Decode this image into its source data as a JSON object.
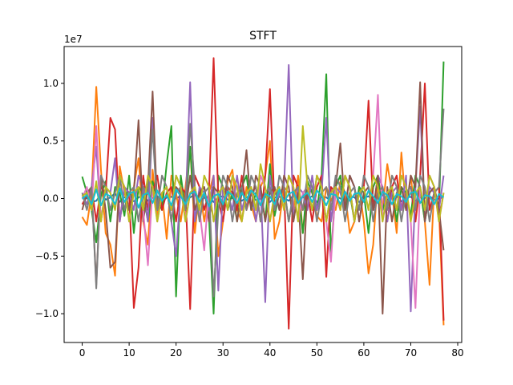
{
  "chart_data": {
    "type": "line",
    "title": "STFT",
    "xlabel": "",
    "ylabel": "",
    "y_multiplier_label": "1e7",
    "xlim": [
      -3.85,
      80.85
    ],
    "ylim": [
      -12500000.0,
      13200000.0
    ],
    "grid": false,
    "legend": "none",
    "x_ticks": [
      0,
      10,
      20,
      30,
      40,
      50,
      60,
      70,
      80
    ],
    "x_tick_labels": [
      "0",
      "10",
      "20",
      "30",
      "40",
      "50",
      "60",
      "70",
      "80"
    ],
    "y_ticks": [
      -10000000.0,
      -5000000.0,
      0.0,
      5000000.0,
      10000000.0
    ],
    "y_tick_labels": [
      "−1.0",
      "−0.5",
      "0.0",
      "0.5",
      "1.0"
    ],
    "x": [
      0,
      1,
      2,
      3,
      4,
      5,
      6,
      7,
      8,
      9,
      10,
      11,
      12,
      13,
      14,
      15,
      16,
      17,
      18,
      19,
      20,
      21,
      22,
      23,
      24,
      25,
      26,
      27,
      28,
      29,
      30,
      31,
      32,
      33,
      34,
      35,
      36,
      37,
      38,
      39,
      40,
      41,
      42,
      43,
      44,
      45,
      46,
      47,
      48,
      49,
      50,
      51,
      52,
      53,
      54,
      55,
      56,
      57,
      58,
      59,
      60,
      61,
      62,
      63,
      64,
      65,
      66,
      67,
      68,
      69,
      70,
      71,
      72,
      73,
      74,
      75,
      76,
      77
    ],
    "colors": [
      "#1f77b4",
      "#ff7f0e",
      "#2ca02c",
      "#d62728",
      "#9467bd",
      "#8c564b",
      "#e377c2",
      "#7f7f7f",
      "#bcbd22",
      "#17becf"
    ],
    "series": [
      {
        "values": [
          0.0,
          0.03,
          -0.3,
          -0.2,
          0.4,
          -0.1,
          0.1,
          0.45,
          -0.3,
          0.1,
          0.2,
          -0.25,
          0.1,
          0.3,
          -0.2,
          0.05,
          0.2,
          -0.3,
          0.1,
          0.15,
          0.0,
          0.25,
          -0.3,
          0.1,
          0.35,
          -0.2,
          0.05,
          0.2,
          -0.3,
          0.1,
          0.2,
          -0.1,
          0.05,
          0.25,
          -0.2,
          0.1,
          0.3,
          -0.15,
          0.0,
          0.2,
          -0.3,
          0.1,
          0.15,
          0.05,
          -0.2,
          0.3,
          -0.1,
          0.1,
          0.0,
          0.2,
          -0.3,
          0.15,
          0.1,
          -0.2,
          0.25,
          0.0,
          -0.1,
          0.2,
          0.1,
          -0.3,
          0.05,
          0.2,
          -0.2,
          0.1,
          0.3,
          -0.1,
          0.0,
          0.2,
          -0.25,
          0.1,
          0.15,
          -0.2,
          0.1,
          0.05,
          0.2,
          -0.1,
          0.0,
          0.1
        ]
      },
      {
        "values": [
          -1.6,
          -2.3,
          0.5,
          9.7,
          2.5,
          -3.0,
          -4.0,
          -6.7,
          2.8,
          0.5,
          -1.0,
          1.0,
          3.5,
          -2.0,
          -4.0,
          2.5,
          -1.5,
          0.5,
          -3.5,
          2.0,
          0.5,
          -2.0,
          1.0,
          4.5,
          -3.0,
          1.0,
          -2.0,
          0.5,
          2.0,
          -5.0,
          -2.0,
          1.5,
          2.5,
          -1.0,
          -2.0,
          1.0,
          -0.5,
          -2.0,
          1.0,
          2.0,
          5.0,
          -3.5,
          -2.0,
          1.0,
          0.5,
          -1.0,
          2.0,
          -3.0,
          1.0,
          0.5,
          -1.5,
          -2.0,
          1.0,
          0.0,
          -1.0,
          1.5,
          0.5,
          -3.0,
          -2.0,
          1.0,
          -2.0,
          -6.5,
          -4.0,
          2.0,
          -1.0,
          3.0,
          0.5,
          -3.0,
          4.0,
          -1.0,
          2.0,
          -2.0,
          1.0,
          -2.0,
          -7.5,
          1.0,
          -1.0,
          -11.0
        ]
      },
      {
        "values": [
          1.9,
          0.5,
          -1.0,
          -3.8,
          0.3,
          1.5,
          -2.0,
          1.0,
          0.5,
          -1.5,
          2.0,
          -3.0,
          1.0,
          0.5,
          -2.0,
          1.5,
          0.0,
          -1.0,
          3.0,
          6.3,
          -8.5,
          2.0,
          -1.0,
          4.5,
          -2.0,
          0.5,
          1.0,
          -1.5,
          -10.0,
          2.0,
          1.0,
          -1.0,
          0.5,
          -2.0,
          1.0,
          2.0,
          -1.0,
          0.5,
          1.0,
          -2.0,
          3.0,
          -1.5,
          0.5,
          1.0,
          -2.0,
          0.5,
          1.0,
          -3.0,
          1.5,
          0.5,
          -1.0,
          2.0,
          10.8,
          -5.0,
          1.0,
          2.0,
          -1.0,
          0.5,
          -2.0,
          1.0,
          0.5,
          -3.0,
          1.0,
          2.0,
          -1.0,
          0.5,
          1.0,
          -2.0,
          1.0,
          0.5,
          -1.5,
          2.0,
          1.0,
          -2.0,
          0.5,
          1.0,
          -1.0,
          11.9
        ]
      },
      {
        "values": [
          -0.5,
          0.2,
          1.0,
          -2.0,
          1.0,
          0.5,
          7.0,
          6.0,
          -2.0,
          1.0,
          0.5,
          -9.5,
          -6.0,
          2.0,
          -1.0,
          0.5,
          2.0,
          -1.0,
          0.5,
          1.0,
          -2.0,
          1.0,
          0.5,
          -9.6,
          2.0,
          1.0,
          -1.0,
          0.5,
          12.2,
          0.0,
          -2.0,
          1.0,
          0.5,
          -1.0,
          2.0,
          -1.0,
          0.5,
          1.0,
          -2.0,
          2.0,
          9.5,
          -1.0,
          0.5,
          1.0,
          -11.3,
          2.0,
          1.0,
          -1.0,
          0.5,
          -2.0,
          1.0,
          2.0,
          -6.8,
          1.0,
          0.5,
          -1.0,
          2.0,
          1.0,
          -2.0,
          0.5,
          1.0,
          8.5,
          -1.0,
          0.5,
          1.0,
          -2.0,
          1.0,
          2.0,
          -1.0,
          0.5,
          1.0,
          -2.0,
          2.0,
          10.0,
          -1.0,
          0.5,
          1.0,
          -10.6
        ]
      },
      {
        "values": [
          0.3,
          -0.5,
          1.0,
          4.5,
          -2.0,
          1.0,
          0.5,
          3.5,
          -2.0,
          1.0,
          0.5,
          -1.0,
          2.0,
          1.0,
          -2.0,
          7.0,
          -1.0,
          0.5,
          1.0,
          -2.0,
          -5.0,
          1.0,
          -1.0,
          10.1,
          -2.0,
          1.0,
          0.5,
          -1.0,
          2.0,
          -8.0,
          1.0,
          0.5,
          -1.0,
          2.0,
          -1.0,
          0.5,
          1.0,
          -2.0,
          1.0,
          -9.0,
          2.0,
          -1.0,
          0.5,
          1.0,
          11.6,
          -2.0,
          1.0,
          0.5,
          -1.0,
          2.0,
          -1.0,
          0.5,
          7.0,
          -2.0,
          1.0,
          0.5,
          -1.0,
          2.0,
          1.0,
          -2.0,
          0.5,
          1.0,
          -1.0,
          2.0,
          1.0,
          -2.0,
          0.5,
          1.0,
          -1.0,
          2.0,
          -9.8,
          1.0,
          8.0,
          -2.0,
          1.0,
          0.5,
          -1.0,
          2.0
        ]
      },
      {
        "values": [
          -1.0,
          0.5,
          1.0,
          -7.5,
          2.0,
          -1.0,
          -6.0,
          -5.5,
          2.0,
          1.0,
          -1.0,
          0.5,
          6.8,
          -2.0,
          1.0,
          9.3,
          -1.0,
          0.5,
          1.0,
          -2.0,
          1.0,
          0.5,
          -1.0,
          2.0,
          -1.0,
          0.5,
          1.0,
          -2.0,
          1.0,
          0.5,
          -1.0,
          2.0,
          1.0,
          -2.0,
          0.5,
          4.2,
          -1.0,
          2.0,
          1.0,
          -2.0,
          0.5,
          1.0,
          -1.0,
          2.0,
          1.0,
          -2.0,
          0.5,
          -7.0,
          1.0,
          -1.0,
          2.0,
          1.0,
          -2.0,
          0.5,
          1.0,
          4.8,
          -1.0,
          2.0,
          1.0,
          -2.0,
          0.5,
          1.0,
          -1.0,
          2.0,
          -10.0,
          1.0,
          -2.0,
          0.5,
          1.0,
          -1.0,
          2.0,
          1.0,
          10.1,
          -2.0,
          0.5,
          1.0,
          -1.0,
          -4.5
        ]
      },
      {
        "values": [
          0.0,
          1.0,
          -1.0,
          6.3,
          -2.0,
          1.0,
          0.5,
          -1.0,
          2.0,
          1.0,
          -2.0,
          0.5,
          1.0,
          -1.0,
          -5.8,
          1.0,
          -2.0,
          0.5,
          1.0,
          -1.0,
          2.0,
          1.0,
          -2.0,
          0.5,
          1.0,
          -1.0,
          -4.5,
          1.0,
          -2.0,
          0.5,
          1.0,
          -1.0,
          2.0,
          1.0,
          -2.0,
          0.5,
          1.0,
          -1.0,
          2.0,
          1.0,
          -2.0,
          0.5,
          1.0,
          -1.0,
          2.0,
          1.0,
          -2.0,
          0.5,
          1.0,
          -1.0,
          2.0,
          1.0,
          -2.0,
          -5.5,
          1.0,
          -1.0,
          2.0,
          1.0,
          -2.0,
          0.5,
          1.0,
          -1.0,
          2.0,
          9.0,
          -2.0,
          0.5,
          1.0,
          -1.0,
          2.0,
          1.0,
          -2.0,
          -9.5,
          1.0,
          -1.0,
          2.0,
          1.0,
          -2.0,
          0.5
        ]
      },
      {
        "values": [
          0.5,
          -1.0,
          1.0,
          -7.8,
          2.0,
          1.0,
          -1.0,
          0.5,
          2.0,
          -1.0,
          0.5,
          1.0,
          -2.0,
          1.0,
          0.5,
          6.0,
          -1.0,
          2.0,
          1.0,
          -2.0,
          0.5,
          1.0,
          -1.0,
          6.5,
          1.0,
          -2.0,
          0.5,
          1.0,
          -8.5,
          -1.0,
          2.0,
          1.0,
          -2.0,
          0.5,
          1.0,
          -1.0,
          2.0,
          1.0,
          -2.0,
          0.5,
          1.0,
          -1.0,
          2.0,
          1.0,
          -2.0,
          0.5,
          1.0,
          -1.0,
          2.0,
          1.0,
          -2.0,
          0.5,
          1.0,
          -1.0,
          2.0,
          1.0,
          -2.0,
          0.5,
          1.0,
          -1.0,
          2.0,
          1.0,
          -2.0,
          0.5,
          1.0,
          -1.0,
          2.0,
          1.0,
          -2.0,
          0.5,
          1.0,
          -1.0,
          2.0,
          1.0,
          -2.0,
          0.5,
          1.0,
          7.8
        ]
      },
      {
        "values": [
          0.2,
          0.5,
          -1.0,
          1.5,
          -2.0,
          1.0,
          0.5,
          -1.0,
          2.0,
          1.0,
          -2.0,
          0.5,
          1.0,
          -1.0,
          2.0,
          1.0,
          -2.0,
          0.5,
          1.0,
          -1.0,
          2.0,
          1.0,
          -2.0,
          0.5,
          1.0,
          -1.0,
          2.0,
          1.0,
          -2.0,
          0.5,
          1.0,
          -1.0,
          2.0,
          1.0,
          -2.0,
          0.5,
          1.0,
          -1.0,
          3.0,
          1.0,
          -2.0,
          0.5,
          1.0,
          -1.0,
          2.0,
          1.0,
          -2.0,
          6.3,
          1.0,
          -1.0,
          2.0,
          1.0,
          -2.0,
          0.5,
          1.0,
          -1.0,
          2.0,
          1.0,
          -2.0,
          0.5,
          1.0,
          -1.0,
          2.0,
          1.0,
          -2.0,
          0.5,
          1.0,
          -1.0,
          2.0,
          1.0,
          -2.0,
          0.5,
          1.0,
          -1.0,
          2.0,
          1.0,
          -2.0,
          0.5
        ]
      },
      {
        "values": [
          0.0,
          0.3,
          -0.5,
          0.8,
          -0.6,
          0.4,
          0.2,
          -0.5,
          0.9,
          -0.3,
          0.4,
          0.6,
          -0.8,
          0.3,
          0.5,
          -0.4,
          0.7,
          -0.2,
          0.3,
          -0.6,
          0.8,
          0.2,
          -0.5,
          0.4,
          0.6,
          -0.3,
          0.5,
          -0.7,
          0.2,
          0.4,
          -0.5,
          0.6,
          0.3,
          -0.4,
          0.5,
          -0.2,
          0.7,
          0.3,
          -0.6,
          0.4,
          0.2,
          -0.5,
          0.8,
          -0.3,
          0.4,
          0.6,
          -0.4,
          0.2,
          0.5,
          -0.3,
          0.7,
          0.2,
          -0.6,
          0.4,
          0.3,
          -0.5,
          0.6,
          -0.2,
          0.4,
          0.5,
          -0.3,
          0.7,
          0.2,
          -0.4,
          0.6,
          0.3,
          -0.5,
          0.4,
          0.2,
          -0.3,
          0.5,
          0.6,
          -0.4,
          0.3,
          0.2,
          -0.5,
          0.4,
          0.1
        ]
      }
    ]
  }
}
